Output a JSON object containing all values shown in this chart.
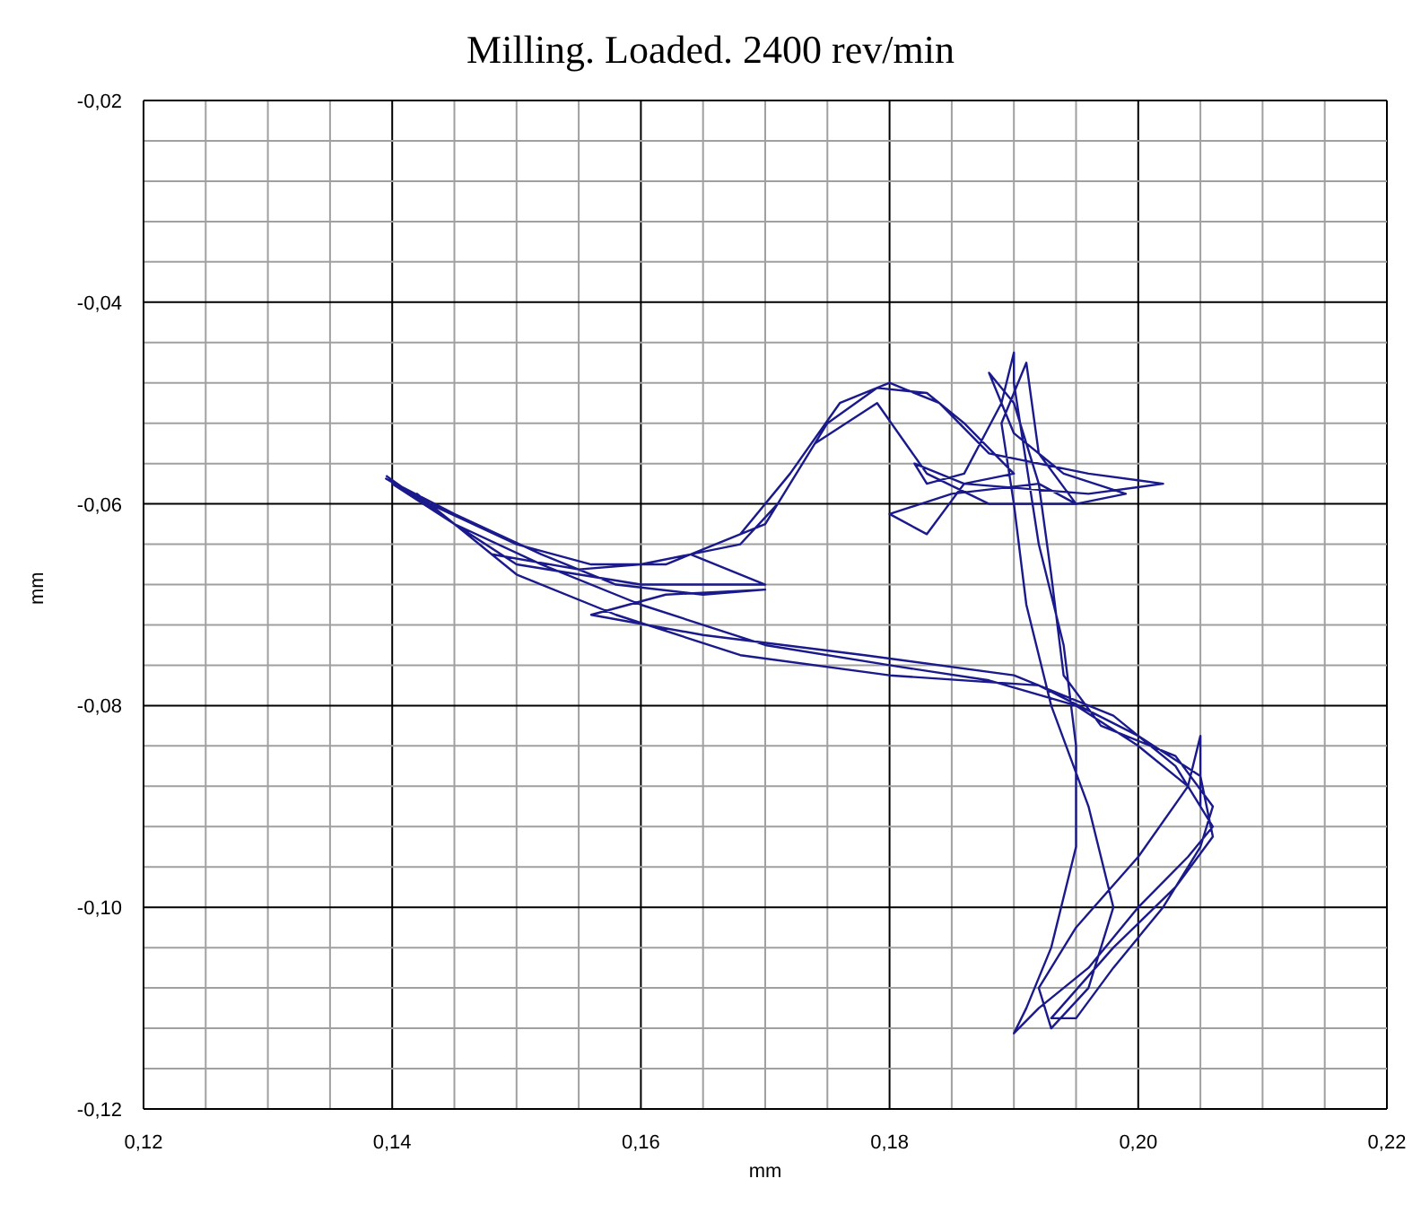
{
  "chart_data": {
    "type": "line",
    "title": "Milling. Loaded. 2400 rev/min",
    "xlabel": "mm",
    "ylabel": "mm",
    "xlim": [
      0.12,
      0.22
    ],
    "xticks": [
      {
        "value": 0.12,
        "label": "0,12"
      },
      {
        "value": 0.125,
        "label": null
      },
      {
        "value": 0.13,
        "label": null
      },
      {
        "value": 0.135,
        "label": null
      },
      {
        "value": 0.14,
        "label": "0,14"
      },
      {
        "value": 0.145,
        "label": null
      },
      {
        "value": 0.15,
        "label": null
      },
      {
        "value": 0.155,
        "label": null
      },
      {
        "value": 0.16,
        "label": "0,16"
      },
      {
        "value": 0.165,
        "label": null
      },
      {
        "value": 0.17,
        "label": null
      },
      {
        "value": 0.175,
        "label": null
      },
      {
        "value": 0.18,
        "label": "0,18"
      },
      {
        "value": 0.185,
        "label": null
      },
      {
        "value": 0.19,
        "label": null
      },
      {
        "value": 0.195,
        "label": null
      },
      {
        "value": 0.2,
        "label": "0,20"
      },
      {
        "value": 0.205,
        "label": null
      },
      {
        "value": 0.21,
        "label": null
      },
      {
        "value": 0.215,
        "label": null
      },
      {
        "value": 0.22,
        "label": "0,22"
      }
    ],
    "ylim": [
      -0.12,
      -0.02
    ],
    "yticks": [
      {
        "value": -0.12,
        "label": "-0,12"
      },
      {
        "value": -0.116,
        "label": null
      },
      {
        "value": -0.112,
        "label": null
      },
      {
        "value": -0.108,
        "label": null
      },
      {
        "value": -0.104,
        "label": null
      },
      {
        "value": -0.1,
        "label": "-0,10"
      },
      {
        "value": -0.096,
        "label": null
      },
      {
        "value": -0.092,
        "label": null
      },
      {
        "value": -0.088,
        "label": null
      },
      {
        "value": -0.084,
        "label": null
      },
      {
        "value": -0.08,
        "label": "-0,08"
      },
      {
        "value": -0.076,
        "label": null
      },
      {
        "value": -0.072,
        "label": null
      },
      {
        "value": -0.068,
        "label": null
      },
      {
        "value": -0.064,
        "label": null
      },
      {
        "value": -0.06,
        "label": "-0,06"
      },
      {
        "value": -0.056,
        "label": null
      },
      {
        "value": -0.052,
        "label": null
      },
      {
        "value": -0.048,
        "label": null
      },
      {
        "value": -0.044,
        "label": null
      },
      {
        "value": -0.04,
        "label": "-0,04"
      },
      {
        "value": -0.036,
        "label": null
      },
      {
        "value": -0.032,
        "label": null
      },
      {
        "value": -0.028,
        "label": null
      },
      {
        "value": -0.024,
        "label": null
      },
      {
        "value": -0.02,
        "label": "-0,02"
      }
    ],
    "grid": true,
    "legend": false,
    "marker": "none",
    "line_style": "solid",
    "series": [
      {
        "color": "#1a1a8c",
        "x": [
          0.1395,
          0.145,
          0.152,
          0.16,
          0.17,
          0.18,
          0.188,
          0.195,
          0.2,
          0.204,
          0.206,
          0.204,
          0.2,
          0.196,
          0.192,
          0.19,
          0.191,
          0.193,
          0.195,
          0.195,
          0.194,
          0.192,
          0.191,
          0.19,
          0.19,
          0.189,
          0.186,
          0.183,
          0.182,
          0.186,
          0.196,
          0.202,
          0.196,
          0.188,
          0.184,
          0.18,
          0.176,
          0.172,
          0.168,
          0.162,
          0.156,
          0.15,
          0.143,
          0.1395,
          0.145,
          0.152,
          0.158,
          0.165,
          0.17,
          0.162,
          0.156,
          0.165,
          0.178,
          0.19,
          0.198,
          0.203,
          0.205,
          0.205,
          0.204,
          0.2,
          0.195,
          0.192,
          0.193,
          0.196,
          0.198,
          0.196,
          0.193,
          0.191,
          0.19,
          0.189,
          0.191,
          0.192,
          0.195,
          0.192,
          0.185,
          0.18,
          0.183,
          0.186,
          0.19,
          0.186,
          0.183,
          0.179,
          0.175,
          0.171,
          0.168,
          0.16,
          0.155,
          0.148,
          0.142,
          0.15,
          0.158,
          0.168,
          0.18,
          0.192,
          0.2,
          0.205,
          0.206,
          0.203,
          0.198,
          0.193,
          0.195,
          0.198,
          0.202,
          0.205,
          0.206,
          0.203,
          0.197,
          0.194,
          0.193,
          0.192,
          0.19,
          0.188,
          0.19,
          0.194,
          0.199,
          0.195,
          0.188,
          0.183,
          0.179,
          0.174,
          0.17,
          0.164,
          0.17,
          0.16,
          0.15,
          0.14
        ],
        "values": [
          -0.0572,
          -0.062,
          -0.066,
          -0.07,
          -0.074,
          -0.076,
          -0.0775,
          -0.08,
          -0.084,
          -0.088,
          -0.092,
          -0.095,
          -0.1,
          -0.106,
          -0.11,
          -0.1125,
          -0.11,
          -0.104,
          -0.094,
          -0.084,
          -0.074,
          -0.064,
          -0.056,
          -0.048,
          -0.045,
          -0.05,
          -0.057,
          -0.058,
          -0.056,
          -0.058,
          -0.059,
          -0.058,
          -0.057,
          -0.055,
          -0.05,
          -0.048,
          -0.05,
          -0.057,
          -0.063,
          -0.066,
          -0.066,
          -0.064,
          -0.06,
          -0.0575,
          -0.061,
          -0.065,
          -0.068,
          -0.069,
          -0.0685,
          -0.069,
          -0.071,
          -0.073,
          -0.075,
          -0.077,
          -0.081,
          -0.086,
          -0.09,
          -0.083,
          -0.088,
          -0.095,
          -0.102,
          -0.108,
          -0.112,
          -0.108,
          -0.1,
          -0.09,
          -0.08,
          -0.07,
          -0.06,
          -0.052,
          -0.046,
          -0.055,
          -0.06,
          -0.058,
          -0.059,
          -0.061,
          -0.063,
          -0.058,
          -0.057,
          -0.052,
          -0.049,
          -0.0485,
          -0.052,
          -0.06,
          -0.064,
          -0.066,
          -0.0665,
          -0.065,
          -0.059,
          -0.067,
          -0.071,
          -0.075,
          -0.077,
          -0.078,
          -0.083,
          -0.087,
          -0.093,
          -0.098,
          -0.104,
          -0.111,
          -0.111,
          -0.106,
          -0.1,
          -0.094,
          -0.09,
          -0.085,
          -0.082,
          -0.077,
          -0.067,
          -0.058,
          -0.05,
          -0.047,
          -0.053,
          -0.057,
          -0.059,
          -0.06,
          -0.06,
          -0.057,
          -0.05,
          -0.054,
          -0.062,
          -0.065,
          -0.068,
          -0.068,
          -0.066,
          -0.058
        ]
      }
    ]
  }
}
